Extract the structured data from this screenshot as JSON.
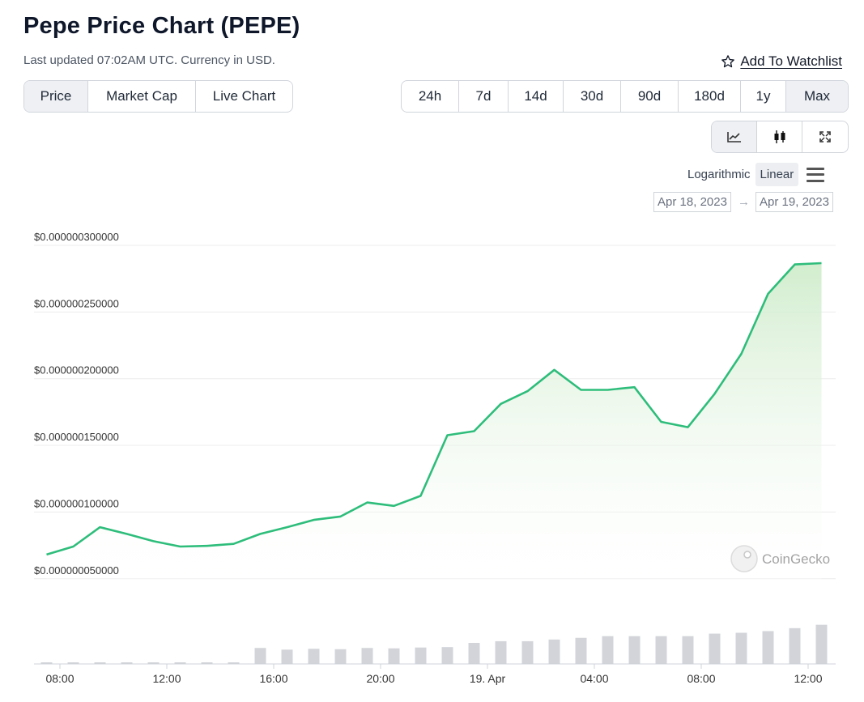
{
  "page": {
    "title": "Pepe Price Chart (PEPE)",
    "subtitle": "Last updated 07:02AM UTC. Currency in USD.",
    "watchlist_label": "Add To Watchlist"
  },
  "tabs": [
    {
      "label": "Price",
      "active": true
    },
    {
      "label": "Market Cap",
      "active": false
    },
    {
      "label": "Live Chart",
      "active": false
    }
  ],
  "ranges": [
    {
      "label": "24h",
      "active": false
    },
    {
      "label": "7d",
      "active": false
    },
    {
      "label": "14d",
      "active": false
    },
    {
      "label": "30d",
      "active": false
    },
    {
      "label": "90d",
      "active": false
    },
    {
      "label": "180d",
      "active": false
    },
    {
      "label": "1y",
      "active": false
    },
    {
      "label": "Max",
      "active": true
    }
  ],
  "tools": [
    {
      "icon": "line-chart-icon",
      "active": true
    },
    {
      "icon": "candlestick-icon",
      "active": false
    },
    {
      "icon": "fullscreen-icon",
      "active": false
    }
  ],
  "scale": {
    "logarithmic": "Logarithmic",
    "linear": "Linear",
    "active": "linear"
  },
  "dates": {
    "from": "Apr 18, 2023",
    "to": "Apr 19, 2023"
  },
  "watermark": "CoinGecko",
  "colors": {
    "line": "#2ebd7b",
    "area_top": "#d4edd0",
    "bars": "#d2d4d9",
    "grid": "#ececec"
  },
  "chart_data": {
    "type": "line",
    "series_label": "",
    "y_ticks": [
      "$0.000000050000",
      "$0.000000100000",
      "$0.000000150000",
      "$0.000000200000",
      "$0.000000250000",
      "$0.000000300000"
    ],
    "y_tick_values": [
      5e-08,
      1e-07,
      1.5e-07,
      2e-07,
      2.5e-07,
      3e-07
    ],
    "ylim": [
      4.5e-08,
      3e-07
    ],
    "x_ticks": [
      {
        "label": "08:00",
        "hour": 8
      },
      {
        "label": "12:00",
        "hour": 12
      },
      {
        "label": "16:00",
        "hour": 16
      },
      {
        "label": "20:00",
        "hour": 20
      },
      {
        "label": "19. Apr",
        "hour": 24
      },
      {
        "label": "04:00",
        "hour": 28
      },
      {
        "label": "08:00",
        "hour": 32
      },
      {
        "label": "12:00",
        "hour": 36
      }
    ],
    "x_hours": [
      7.5,
      8.5,
      9.5,
      10.5,
      11.5,
      12.5,
      13.5,
      14.5,
      15.5,
      16.5,
      17.5,
      18.5,
      19.5,
      20.5,
      21.5,
      22.5,
      23.5,
      24.5,
      25.5,
      26.5,
      27.5,
      28.5,
      29.5,
      30.5,
      31.5,
      32.5,
      33.5,
      34.5,
      35.5,
      36.5
    ],
    "price": [
      6.45e-08,
      7.05e-08,
      8.5e-08,
      8e-08,
      7.45e-08,
      7.05e-08,
      7.1e-08,
      7.25e-08,
      8e-08,
      8.5e-08,
      9.05e-08,
      9.3e-08,
      1.035e-07,
      1.01e-07,
      1.085e-07,
      1.54e-07,
      1.57e-07,
      1.775e-07,
      1.87e-07,
      2.03e-07,
      1.88e-07,
      1.88e-07,
      1.9e-07,
      1.64e-07,
      1.6e-07,
      1.85e-07,
      2.15e-07,
      2.6e-07,
      2.82e-07,
      2.83e-07
    ],
    "volume_relative": [
      0.01,
      0.01,
      0.01,
      0.01,
      0.02,
      0.02,
      0.02,
      0.02,
      0.38,
      0.34,
      0.36,
      0.35,
      0.38,
      0.37,
      0.39,
      0.4,
      0.5,
      0.54,
      0.54,
      0.58,
      0.62,
      0.66,
      0.66,
      0.66,
      0.66,
      0.72,
      0.74,
      0.78,
      0.85,
      0.93
    ]
  }
}
